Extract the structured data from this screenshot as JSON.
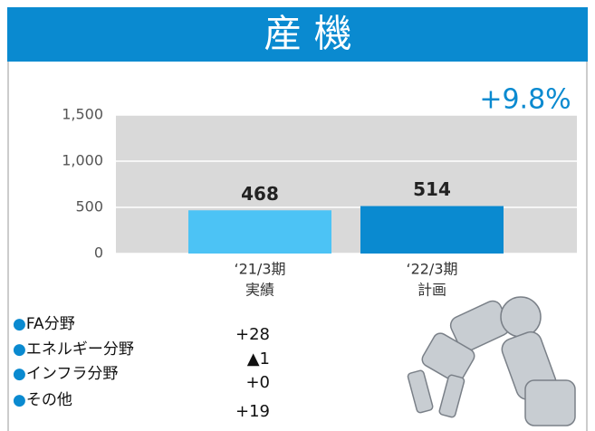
{
  "chart_data": {
    "type": "bar",
    "title": "産 機",
    "categories": [
      "‘21/3期",
      "‘22/3期"
    ],
    "category_sublabels": [
      "実績",
      "計画"
    ],
    "values": [
      468,
      514
    ],
    "colors": [
      "#4cc3f5",
      "#0a8ad0"
    ],
    "ylim": [
      0,
      1500
    ],
    "yticks": [
      0,
      500,
      {
        "value": 1000,
        "label": "1,000"
      },
      {
        "value": 1500,
        "label": "1,500"
      }
    ],
    "grid": true,
    "annotation": "+9.8%",
    "breakdown": [
      {
        "label": "●FA分野",
        "value": "+28"
      },
      {
        "label": "●エネルギー分野",
        "value": "▲1"
      },
      {
        "label": "●インフラ分野",
        "value": "+0"
      },
      {
        "label": "●その他",
        "value": "+19"
      }
    ]
  }
}
